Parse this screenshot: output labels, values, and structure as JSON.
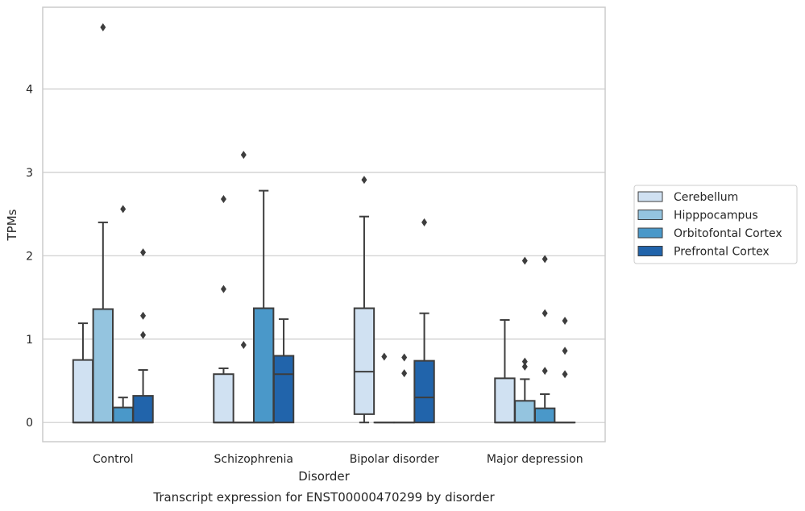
{
  "chart_data": {
    "type": "boxplot",
    "title": "Transcript expression for ENST00000470299 by disorder",
    "xlabel": "Disorder",
    "ylabel": "TPMs",
    "ylim": [
      -0.23,
      4.98
    ],
    "yticks": [
      0,
      1,
      2,
      3,
      4
    ],
    "grid": "horizontal",
    "legend_position": "right",
    "categories": [
      "Control",
      "Schizophrenia",
      "Bipolar disorder",
      "Major depression"
    ],
    "series": [
      {
        "name": "Cerebellum",
        "color": "#d0e1f2",
        "boxes": [
          {
            "min": 0,
            "q1": 0,
            "median": 0,
            "q3": 0.75,
            "max": 1.19,
            "outliers": []
          },
          {
            "min": 0,
            "q1": 0,
            "median": 0,
            "q3": 0.58,
            "max": 0.65,
            "outliers": [
              1.6,
              2.68
            ]
          },
          {
            "min": 0,
            "q1": 0.1,
            "median": 0.61,
            "q3": 1.37,
            "max": 2.47,
            "outliers": [
              2.91
            ]
          },
          {
            "min": 0,
            "q1": 0,
            "median": 0,
            "q3": 0.53,
            "max": 1.23,
            "outliers": []
          }
        ]
      },
      {
        "name": "Hipppocampus",
        "color": "#94c4df",
        "boxes": [
          {
            "min": 0,
            "q1": 0,
            "median": 0,
            "q3": 1.36,
            "max": 2.4,
            "outliers": [
              4.74
            ]
          },
          {
            "min": 0,
            "q1": 0,
            "median": 0,
            "q3": 0,
            "max": 0,
            "outliers": [
              0.93,
              3.21
            ]
          },
          {
            "min": 0,
            "q1": 0,
            "median": 0,
            "q3": 0,
            "max": 0,
            "outliers": [
              0.79
            ]
          },
          {
            "min": 0,
            "q1": 0,
            "median": 0,
            "q3": 0.26,
            "max": 0.52,
            "outliers": [
              0.67,
              0.73,
              1.94
            ]
          }
        ]
      },
      {
        "name": "Orbitofontal Cortex",
        "color": "#4a98c9",
        "boxes": [
          {
            "min": 0,
            "q1": 0,
            "median": 0,
            "q3": 0.18,
            "max": 0.3,
            "outliers": [
              2.56
            ]
          },
          {
            "min": 0,
            "q1": 0,
            "median": 0,
            "q3": 1.37,
            "max": 2.78,
            "outliers": []
          },
          {
            "min": 0,
            "q1": 0,
            "median": 0,
            "q3": 0,
            "max": 0,
            "outliers": [
              0.59,
              0.78
            ]
          },
          {
            "min": 0,
            "q1": 0,
            "median": 0,
            "q3": 0.17,
            "max": 0.34,
            "outliers": [
              0.62,
              1.31,
              1.96
            ]
          }
        ]
      },
      {
        "name": "Prefrontal Cortex",
        "color": "#2164ab",
        "boxes": [
          {
            "min": 0,
            "q1": 0,
            "median": 0,
            "q3": 0.32,
            "max": 0.63,
            "outliers": [
              1.05,
              1.28,
              2.04
            ]
          },
          {
            "min": 0,
            "q1": 0,
            "median": 0.58,
            "q3": 0.8,
            "max": 1.24,
            "outliers": []
          },
          {
            "min": 0,
            "q1": 0,
            "median": 0.3,
            "q3": 0.74,
            "max": 1.31,
            "outliers": [
              2.4
            ]
          },
          {
            "min": 0,
            "q1": 0,
            "median": 0,
            "q3": 0,
            "max": 0,
            "outliers": [
              0.58,
              0.86,
              1.22
            ]
          }
        ]
      }
    ]
  }
}
